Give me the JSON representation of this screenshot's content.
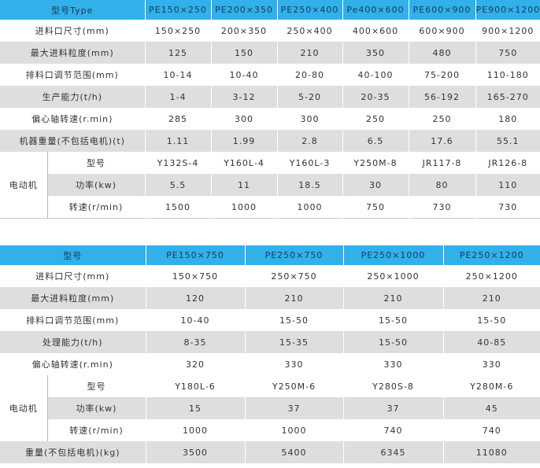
{
  "table1": {
    "header": [
      "型号Type",
      "PE150×250",
      "PE200×350",
      "PE250×400",
      "Pe400×600",
      "PE600×900",
      "PE900×1200"
    ],
    "rows": [
      {
        "label": "进料口尺寸(mm)",
        "values": [
          "150×250",
          "200×350",
          "250×400",
          "400×600",
          "600×900",
          "900×1200"
        ]
      },
      {
        "label": "最大进料粒度(mm)",
        "values": [
          "125",
          "150",
          "210",
          "350",
          "480",
          "750"
        ]
      },
      {
        "label": "排料口调节范围(mm)",
        "values": [
          "10-14",
          "10-40",
          "20-80",
          "40-100",
          "75-200",
          "110-180"
        ]
      },
      {
        "label": "生产能力(t/h)",
        "values": [
          "1-4",
          "3-12",
          "5-20",
          "20-35",
          "56-192",
          "165-270"
        ]
      },
      {
        "label": "偏心轴转速(r.min)",
        "values": [
          "285",
          "300",
          "300",
          "250",
          "250",
          "180"
        ]
      },
      {
        "label": "机器重量(不包括电机)(t)",
        "values": [
          "1.11",
          "1.99",
          "2.8",
          "6.5",
          "17.6",
          "55.1"
        ]
      }
    ],
    "motor": {
      "label": "电动机",
      "rows": [
        {
          "label": "型号",
          "values": [
            "Y132S-4",
            "Y160L-4",
            "Y160L-3",
            "Y250M-8",
            "JR117-8",
            "JR126-8"
          ]
        },
        {
          "label": "功率(kw)",
          "values": [
            "5.5",
            "11",
            "18.5",
            "30",
            "80",
            "110"
          ]
        },
        {
          "label": "转速(r/min)",
          "values": [
            "1500",
            "1000",
            "1000",
            "750",
            "730",
            "730"
          ]
        }
      ]
    }
  },
  "table2": {
    "header": [
      "型号",
      "PE150×750",
      "PE250×750",
      "PE250×1000",
      "PE250×1200"
    ],
    "rows": [
      {
        "label": "进料口尺寸(mm)",
        "values": [
          "150×750",
          "250×750",
          "250×1000",
          "250×1200"
        ]
      },
      {
        "label": "最大进料粒度(mm)",
        "values": [
          "120",
          "210",
          "210",
          "210"
        ]
      },
      {
        "label": "排料口调节范围(mm)",
        "values": [
          "10-40",
          "15-50",
          "15-50",
          "15-50"
        ]
      },
      {
        "label": "处理能力(t/h)",
        "values": [
          "8-35",
          "15-35",
          "15-50",
          "40-85"
        ]
      },
      {
        "label": "偏心轴转速(r.min)",
        "values": [
          "320",
          "330",
          "330",
          "330"
        ]
      }
    ],
    "motor": {
      "label": "电动机",
      "rows": [
        {
          "label": "型号",
          "values": [
            "Y180L-6",
            "Y250M-6",
            "Y280S-8",
            "Y280M-6"
          ]
        },
        {
          "label": "功率(kw)",
          "values": [
            "15",
            "37",
            "37",
            "45"
          ]
        },
        {
          "label": "转速(r/min)",
          "values": [
            "1000",
            "1000",
            "740",
            "740"
          ]
        }
      ]
    },
    "footer": {
      "label": "重量(不包括电机)(kg)",
      "values": [
        "3500",
        "5400",
        "6345",
        "11080"
      ]
    }
  },
  "colors": {
    "header": "#31b0ea",
    "stripe": "#dedede"
  }
}
